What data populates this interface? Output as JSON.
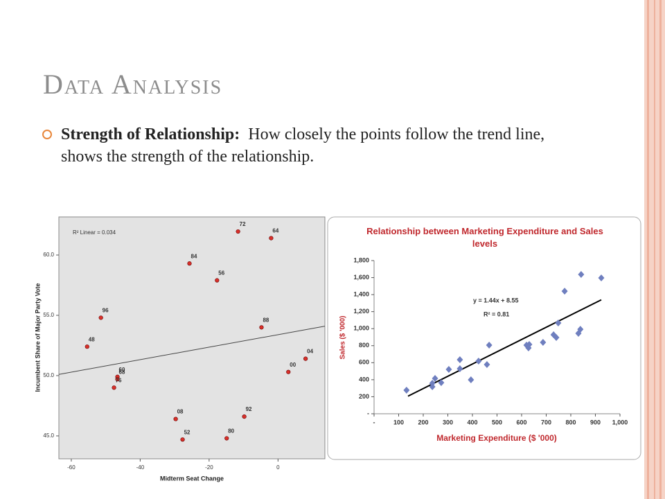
{
  "slide": {
    "title": "Data Analysis",
    "bullet": {
      "label": "Strength of Relationship:",
      "text": "How closely the points follow the trend line, shows the strength of the relationship."
    }
  },
  "chart_data": [
    {
      "type": "scatter",
      "annotation": "R² Linear = 0.034",
      "xlabel": "Midterm Seat Change",
      "ylabel": "Incumbent Share of Major Party Vote",
      "xlim": [
        -63.6,
        13.6
      ],
      "ylim": [
        43.1,
        63.16
      ],
      "xticks": [
        -60,
        -40,
        -20,
        0
      ],
      "yticks": [
        {
          "value": 45,
          "label": "45.0"
        },
        {
          "value": 50,
          "label": "50.0"
        },
        {
          "value": 55,
          "label": "55.0"
        },
        {
          "value": 60,
          "label": "60.0"
        }
      ],
      "color": "#d9302a",
      "point_labels": [
        "72",
        "64",
        "84",
        "56",
        "96",
        "48",
        "88",
        "04",
        "00",
        "60",
        "68",
        "76",
        "08",
        "92",
        "52",
        "80"
      ],
      "x": [
        -11.6,
        -2.0,
        -25.7,
        -17.7,
        -51.4,
        -55.4,
        -4.8,
        8.0,
        3.0,
        -46.6,
        -46.6,
        -47.6,
        -29.7,
        -9.8,
        -27.7,
        -14.9
      ],
      "values": [
        61.95,
        61.4,
        59.3,
        57.9,
        54.8,
        52.4,
        54.0,
        51.4,
        50.3,
        49.9,
        49.7,
        49.0,
        46.4,
        46.6,
        44.7,
        44.8
      ],
      "trendline": {
        "x": [
          -63.6,
          13.6
        ],
        "y": [
          50.1,
          54.1
        ]
      }
    },
    {
      "type": "scatter",
      "title": "Relationship between Marketing Expenditure and Sales levels",
      "annotation": "y = 1.44x + 8.55",
      "annotation2": "R² = 0.81",
      "xlabel": "Marketing Expenditure ($ '000)",
      "ylabel": "Sales ($ '000)",
      "xlim": [
        0,
        1000
      ],
      "ylim": [
        0,
        1800
      ],
      "xticks": [
        {
          "value": 0,
          "label": "-"
        },
        100,
        200,
        300,
        400,
        500,
        600,
        700,
        800,
        900,
        {
          "value": 1000,
          "label": "1,000"
        }
      ],
      "yticks": [
        {
          "value": 0,
          "label": "-"
        },
        200,
        400,
        600,
        800,
        {
          "value": 1000,
          "label": "1,000"
        },
        {
          "value": 1200,
          "label": "1,200"
        },
        {
          "value": 1400,
          "label": "1,400"
        },
        {
          "value": 1600,
          "label": "1,600"
        },
        {
          "value": 1800,
          "label": "1,800"
        }
      ],
      "color": "#6f7fbf",
      "x": [
        132,
        237,
        237,
        248,
        273,
        304,
        349,
        349,
        394,
        425,
        459,
        468,
        620,
        631,
        628,
        687,
        730,
        741,
        749,
        775,
        831,
        839,
        842,
        924
      ],
      "values": [
        277,
        318,
        358,
        415,
        366,
        521,
        635,
        529,
        399,
        619,
        578,
        806,
        806,
        814,
        774,
        839,
        928,
        896,
        1067,
        1441,
        945,
        993,
        1637,
        1596
      ],
      "trendline": {
        "x": [
          138,
          924
        ],
        "y": [
          207,
          1339
        ]
      }
    }
  ]
}
